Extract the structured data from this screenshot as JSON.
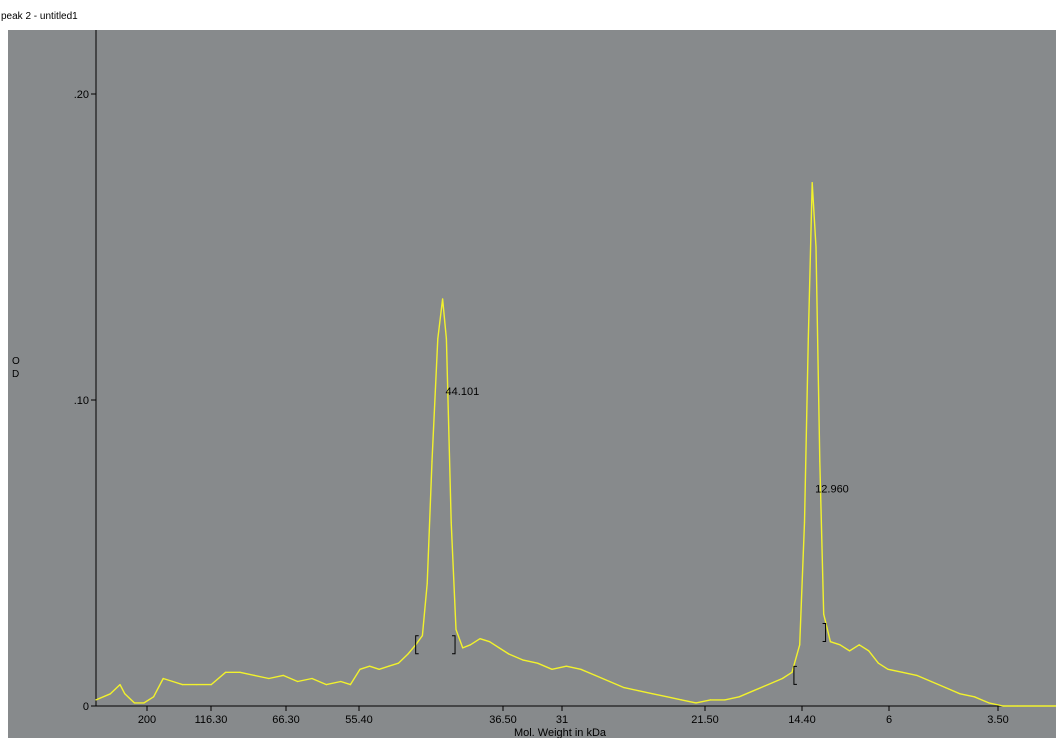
{
  "window": {
    "title": "peak 2 - untitled1"
  },
  "chart_data": {
    "type": "line",
    "title": "",
    "xlabel": "Mol. Weight in kDa",
    "ylabel": "O D",
    "ylim": [
      0,
      0.22
    ],
    "y_ticks": [
      {
        "label": "0",
        "value": 0
      },
      {
        "label": ".10",
        "value": 0.1
      },
      {
        "label": ".20",
        "value": 0.2
      }
    ],
    "x_ticks": [
      "200",
      "116.30",
      "66.30",
      "55.40",
      "36.50",
      "31",
      "21.50",
      "14.40",
      "6",
      "3.50"
    ],
    "grid": false,
    "series": [
      {
        "color": "#f2f22c",
        "points": [
          [
            0,
            0.002
          ],
          [
            1.5,
            0.004
          ],
          [
            2.5,
            0.007
          ],
          [
            3.0,
            0.004
          ],
          [
            4.0,
            0.001
          ],
          [
            5.0,
            0.001
          ],
          [
            6.0,
            0.003
          ],
          [
            7.0,
            0.009
          ],
          [
            8.0,
            0.008
          ],
          [
            9.0,
            0.007
          ],
          [
            10.5,
            0.007
          ],
          [
            12.0,
            0.007
          ],
          [
            13.5,
            0.011
          ],
          [
            15.0,
            0.011
          ],
          [
            16.5,
            0.01
          ],
          [
            18.0,
            0.009
          ],
          [
            19.5,
            0.01
          ],
          [
            21.0,
            0.008
          ],
          [
            22.5,
            0.009
          ],
          [
            24.0,
            0.007
          ],
          [
            25.5,
            0.008
          ],
          [
            26.5,
            0.007
          ],
          [
            27.5,
            0.012
          ],
          [
            28.5,
            0.013
          ],
          [
            29.5,
            0.012
          ],
          [
            30.5,
            0.013
          ],
          [
            31.5,
            0.014
          ],
          [
            32.5,
            0.017
          ],
          [
            33.3,
            0.02
          ],
          [
            34.0,
            0.023
          ],
          [
            34.5,
            0.04
          ],
          [
            35.0,
            0.08
          ],
          [
            35.6,
            0.12
          ],
          [
            36.1,
            0.133
          ],
          [
            36.5,
            0.12
          ],
          [
            37.0,
            0.06
          ],
          [
            37.5,
            0.025
          ],
          [
            38.2,
            0.019
          ],
          [
            39.0,
            0.02
          ],
          [
            40.0,
            0.022
          ],
          [
            41.0,
            0.021
          ],
          [
            42.0,
            0.019
          ],
          [
            43.0,
            0.017
          ],
          [
            44.5,
            0.015
          ],
          [
            46.0,
            0.014
          ],
          [
            47.5,
            0.012
          ],
          [
            49.0,
            0.013
          ],
          [
            50.5,
            0.012
          ],
          [
            52.0,
            0.01
          ],
          [
            53.5,
            0.008
          ],
          [
            55.0,
            0.006
          ],
          [
            56.5,
            0.005
          ],
          [
            58.0,
            0.004
          ],
          [
            59.5,
            0.003
          ],
          [
            61.0,
            0.002
          ],
          [
            62.5,
            0.001
          ],
          [
            64.0,
            0.002
          ],
          [
            65.5,
            0.002
          ],
          [
            67.0,
            0.003
          ],
          [
            68.5,
            0.005
          ],
          [
            70.0,
            0.007
          ],
          [
            71.5,
            0.009
          ],
          [
            72.5,
            0.011
          ],
          [
            73.3,
            0.02
          ],
          [
            73.8,
            0.06
          ],
          [
            74.2,
            0.12
          ],
          [
            74.6,
            0.171
          ],
          [
            75.0,
            0.15
          ],
          [
            75.4,
            0.08
          ],
          [
            75.8,
            0.03
          ],
          [
            76.5,
            0.021
          ],
          [
            77.5,
            0.02
          ],
          [
            78.5,
            0.018
          ],
          [
            79.5,
            0.02
          ],
          [
            80.5,
            0.018
          ],
          [
            81.5,
            0.014
          ],
          [
            82.5,
            0.012
          ],
          [
            84.0,
            0.011
          ],
          [
            85.5,
            0.01
          ],
          [
            87.0,
            0.008
          ],
          [
            88.5,
            0.006
          ],
          [
            90.0,
            0.004
          ],
          [
            91.5,
            0.003
          ],
          [
            93.0,
            0.001
          ],
          [
            94.5,
            0.0
          ],
          [
            96.0,
            0.0
          ],
          [
            100.0,
            0.0
          ]
        ]
      }
    ],
    "annotations": [
      {
        "label": "44.101",
        "x": 36.1,
        "y": 0.103
      },
      {
        "label": "12.960",
        "x": 74.6,
        "y": 0.071
      }
    ],
    "integration_brackets": [
      {
        "x": 33.3,
        "y": 0.02,
        "side": "left"
      },
      {
        "x": 37.4,
        "y": 0.02,
        "side": "right"
      },
      {
        "x": 72.7,
        "y": 0.01,
        "side": "left"
      },
      {
        "x": 76.0,
        "y": 0.024,
        "side": "right"
      }
    ],
    "colors": {
      "plot_background": "#878a8c",
      "axis": "#000000",
      "line": "#f2f22c"
    }
  }
}
